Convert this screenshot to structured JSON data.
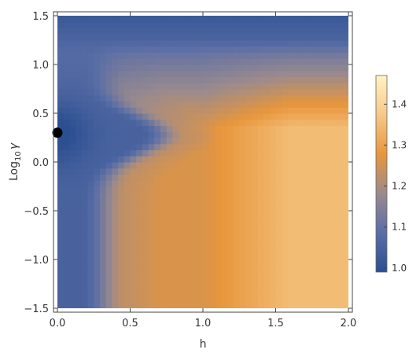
{
  "chart_data": {
    "type": "heatmap",
    "title": "",
    "xlabel": "h",
    "ylabel_main": "Log",
    "ylabel_sub": "10",
    "ylabel_tail": "γ",
    "xlim": [
      0.0,
      2.0
    ],
    "ylim": [
      -1.5,
      1.5
    ],
    "x_ticks": [
      "0.0",
      "0.5",
      "1.0",
      "1.5",
      "2.0"
    ],
    "x_tick_values": [
      0.0,
      0.5,
      1.0,
      1.5,
      2.0
    ],
    "y_ticks": [
      "-1.5",
      "-1.0",
      "-0.5",
      "0.0",
      "0.5",
      "1.0",
      "1.5"
    ],
    "y_tick_values": [
      -1.5,
      -1.0,
      -0.5,
      0.0,
      0.5,
      1.0,
      1.5
    ],
    "colorbar": {
      "min": 0.99,
      "max": 1.47,
      "ticks": [
        "1.0",
        "1.1",
        "1.2",
        "1.3",
        "1.4"
      ],
      "tick_values": [
        1.0,
        1.1,
        1.2,
        1.3,
        1.4
      ],
      "colors": [
        "#2c4f92",
        "#5a6ea6",
        "#9a8a8e",
        "#e8963c",
        "#f6c887",
        "#fff4c3"
      ]
    },
    "marker": {
      "x": 0.0,
      "y": 0.3,
      "color": "#000000"
    },
    "grid": false
  }
}
